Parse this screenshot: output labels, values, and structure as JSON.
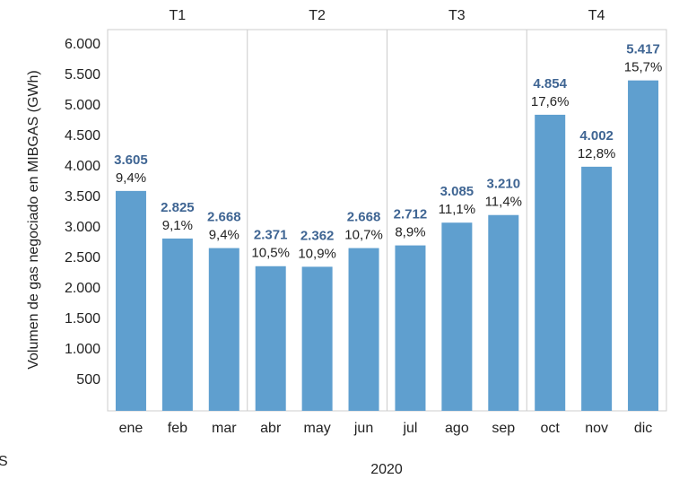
{
  "chart_data": {
    "type": "bar",
    "y_label": "Volumen de gas negociado en MIBGAS (GWh)",
    "x_label": "2020",
    "source": "S",
    "quarters": [
      "T1",
      "T2",
      "T3",
      "T4"
    ],
    "categories": [
      "ene",
      "feb",
      "mar",
      "abr",
      "may",
      "jun",
      "jul",
      "ago",
      "sep",
      "oct",
      "nov",
      "dic"
    ],
    "values": [
      3605,
      2825,
      2668,
      2371,
      2362,
      2668,
      2712,
      3085,
      3210,
      4854,
      4002,
      5417
    ],
    "value_labels": [
      "3.605",
      "2.825",
      "2.668",
      "2.371",
      "2.362",
      "2.668",
      "2.712",
      "3.085",
      "3.210",
      "4.854",
      "4.002",
      "5.417"
    ],
    "share_labels": [
      "9,4%",
      "9,1%",
      "9,4%",
      "10,5%",
      "10,9%",
      "10,7%",
      "8,9%",
      "11,1%",
      "11,4%",
      "17,6%",
      "12,8%",
      "15,7%"
    ],
    "color": "#5f9fcf",
    "ylim": [
      0,
      6250
    ],
    "yticks": [
      500,
      {
        "value": 1000,
        "label": "1.000"
      },
      {
        "value": 1500,
        "label": "1.500"
      },
      {
        "value": 2000,
        "label": "2.000"
      },
      {
        "value": 2500,
        "label": "2.500"
      },
      {
        "value": 3000,
        "label": "3.000"
      },
      {
        "value": 3500,
        "label": "3.500"
      },
      {
        "value": 4000,
        "label": "4.000"
      },
      {
        "value": 4500,
        "label": "4.500"
      },
      {
        "value": 5000,
        "label": "5.000"
      },
      {
        "value": 5500,
        "label": "5.500"
      },
      {
        "value": 6000,
        "label": "6.000"
      }
    ],
    "grid": false
  }
}
